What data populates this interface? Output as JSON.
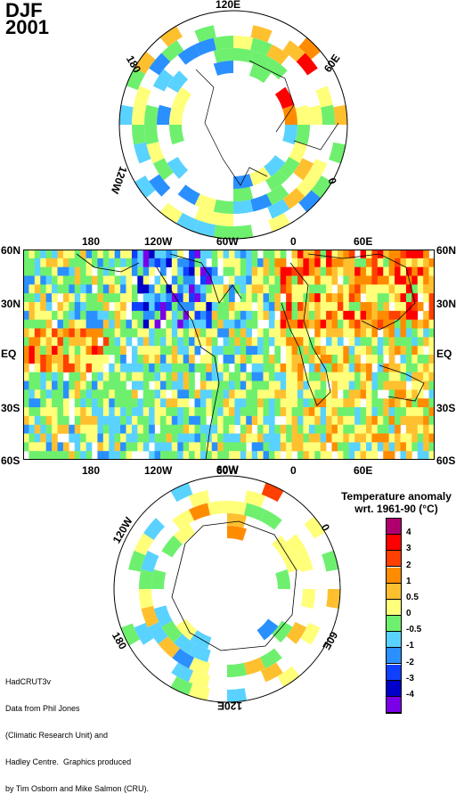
{
  "header": {
    "season": "DJF",
    "year": "2001"
  },
  "north_polar": {
    "labels": {
      "top": "120E",
      "left": "180",
      "right": "60E",
      "lower_left": "120W",
      "lower_right": "0"
    }
  },
  "mercator": {
    "top_lon": [
      "180",
      "120W",
      "60W",
      "0",
      "60E"
    ],
    "bottom_lon": [
      "180",
      "120W",
      "60W",
      "0",
      "60E"
    ],
    "left_lat": [
      "60N",
      "30N",
      "EQ",
      "30S",
      "60S"
    ],
    "right_lat": [
      "60N",
      "30N",
      "EQ",
      "30S",
      "60S"
    ]
  },
  "south_polar": {
    "labels": {
      "top": "60W",
      "left": "120W",
      "right": "0",
      "lower_left": "180",
      "lower_right": "60E",
      "bottom": "120E"
    }
  },
  "legend": {
    "title_line1": "Temperature anomaly",
    "title_line2": "wrt. 1961-90  (°C)",
    "ticks": [
      "4",
      "3",
      "2",
      "1",
      "0.5",
      "0",
      "-0.5",
      "-1",
      "-2",
      "-3",
      "-4"
    ],
    "colors": [
      "#b0006e",
      "#ff0000",
      "#ff4000",
      "#ff8c00",
      "#ffc030",
      "#ffff7a",
      "#6ef06e",
      "#5ad2ff",
      "#2a90ff",
      "#1040ff",
      "#0000c8",
      "#7a00e8"
    ]
  },
  "credits": {
    "line1": "HadCRUT3v",
    "line2": "Data from Phil Jones",
    "line3": "(Climatic Research Unit) and",
    "line4": "Hadley Centre.  Graphics produced",
    "line5": "by Tim Osborn and Mike Salmon (CRU)."
  }
}
